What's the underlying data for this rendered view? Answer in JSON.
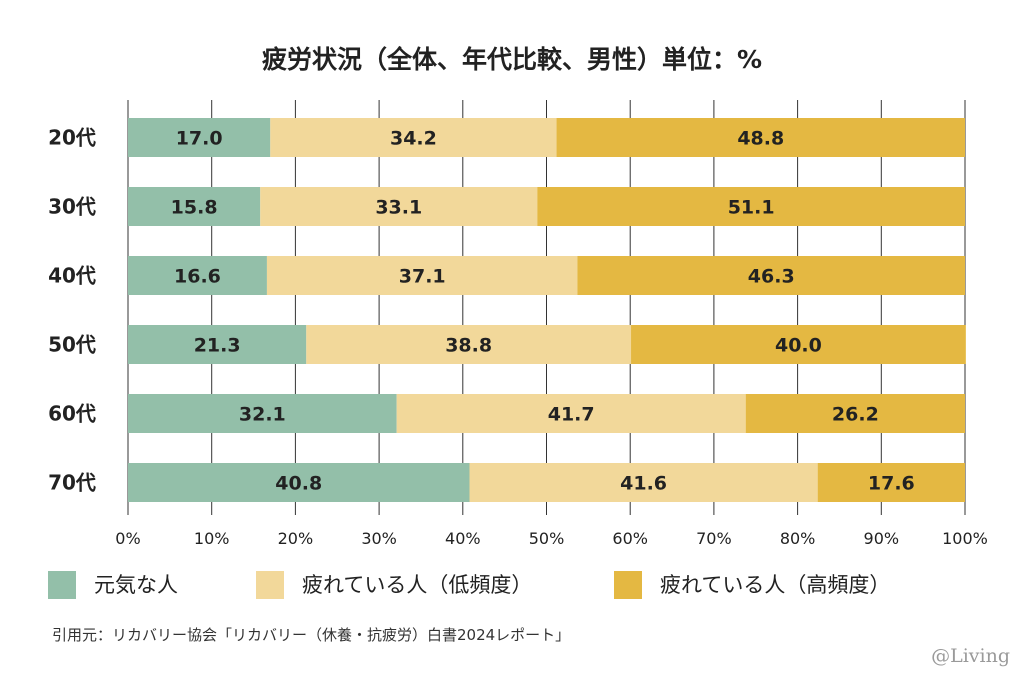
{
  "chart_data": {
    "type": "bar",
    "orientation": "horizontal",
    "stacked": true,
    "title": "疲労状況（全体、年代比較、男性）単位：%",
    "categories": [
      "20代",
      "30代",
      "40代",
      "50代",
      "60代",
      "70代"
    ],
    "series": [
      {
        "name": "元気な人",
        "color": "#93bfa9",
        "values": [
          17.0,
          15.8,
          16.6,
          21.3,
          32.1,
          40.8
        ]
      },
      {
        "name": "疲れている人（低頻度）",
        "color": "#f2d89a",
        "values": [
          34.2,
          33.1,
          37.1,
          38.8,
          41.7,
          41.6
        ]
      },
      {
        "name": "疲れている人（高頻度）",
        "color": "#e4b842",
        "values": [
          48.8,
          51.1,
          46.3,
          40.0,
          26.2,
          17.6
        ]
      }
    ],
    "x_ticks": [
      "0%",
      "10%",
      "20%",
      "30%",
      "40%",
      "50%",
      "60%",
      "70%",
      "80%",
      "90%",
      "100%"
    ],
    "xlim": [
      0,
      100
    ],
    "grid": true,
    "legend": "bottom"
  },
  "source_text": "引用元：リカバリー協会「リカバリー（休養・抗疲労）白書2024レポート」",
  "watermark": {
    "main": "@Living"
  }
}
